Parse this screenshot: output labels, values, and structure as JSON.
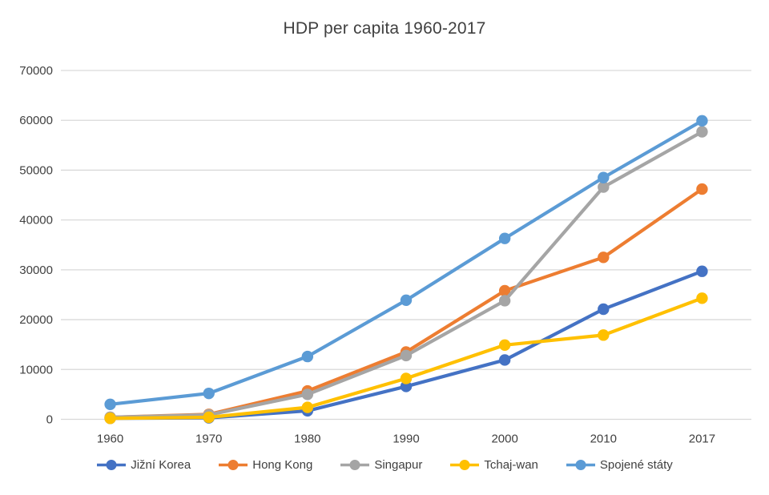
{
  "chart": {
    "title_label": "HDP per capita 1960-2017"
  },
  "colors": {
    "background": "#ffffff",
    "grid": "#d9d9d9",
    "text": "#404040"
  },
  "chart_data": {
    "type": "line",
    "title": "HDP per capita 1960-2017",
    "categories": [
      "1960",
      "1970",
      "1980",
      "1990",
      "2000",
      "2010",
      "2017"
    ],
    "series": [
      {
        "name": "Jižní Korea",
        "color": "#4472C4",
        "values": [
          200,
          300,
          1700,
          6600,
          11900,
          22100,
          29700
        ]
      },
      {
        "name": "Hong Kong",
        "color": "#ED7D31",
        "values": [
          400,
          1000,
          5700,
          13500,
          25800,
          32500,
          46200
        ]
      },
      {
        "name": "Singapur",
        "color": "#A5A5A5",
        "values": [
          400,
          900,
          5000,
          12800,
          23800,
          46600,
          57700
        ]
      },
      {
        "name": "Tchaj-wan",
        "color": "#FFC000",
        "values": [
          200,
          400,
          2400,
          8200,
          14900,
          16900,
          24300
        ]
      },
      {
        "name": "Spojené státy",
        "color": "#5B9BD5",
        "values": [
          3000,
          5200,
          12600,
          23900,
          36300,
          48500,
          59900
        ]
      }
    ],
    "xlabel": "",
    "ylabel": "",
    "ylim": [
      0,
      70000
    ],
    "ytick_step": 10000,
    "ytick_labels": [
      "0",
      "10000",
      "20000",
      "30000",
      "40000",
      "50000",
      "60000",
      "70000"
    ],
    "grid": true,
    "legend_position": "bottom"
  }
}
